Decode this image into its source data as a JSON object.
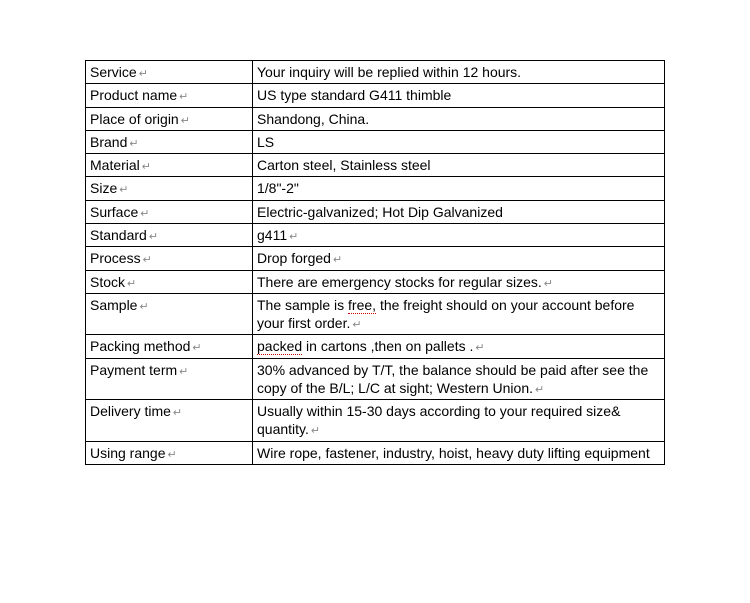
{
  "table": {
    "rows": [
      {
        "label": "Service",
        "labelMark": true,
        "value": "Your inquiry will be replied within 12 hours.",
        "valueMark": false,
        "valueParts": null
      },
      {
        "label": "Product name",
        "labelMark": true,
        "value": "US type standard G411 thimble",
        "valueMark": false,
        "valueParts": null
      },
      {
        "label": "Place of origin",
        "labelMark": true,
        "value": "Shandong, China.",
        "valueMark": false,
        "valueParts": null
      },
      {
        "label": "Brand",
        "labelMark": true,
        "value": "LS",
        "valueMark": false,
        "valueParts": null
      },
      {
        "label": "Material",
        "labelMark": true,
        "value": "Carton steel, Stainless steel",
        "valueMark": false,
        "valueParts": null
      },
      {
        "label": "Size",
        "labelMark": true,
        "value": "1/8\"-2\"",
        "valueMark": false,
        "valueParts": null
      },
      {
        "label": "Surface",
        "labelMark": true,
        "value": "Electric-galvanized; Hot Dip Galvanized",
        "valueMark": false,
        "valueParts": null
      },
      {
        "label": "Standard",
        "labelMark": true,
        "value": "g411",
        "valueMark": true,
        "valueParts": null
      },
      {
        "label": "Process",
        "labelMark": true,
        "value": "Drop forged",
        "valueMark": true,
        "valueParts": null
      },
      {
        "label": "Stock",
        "labelMark": true,
        "value": "There are emergency stocks for regular sizes.",
        "valueMark": true,
        "valueParts": null
      },
      {
        "label": "Sample",
        "labelMark": true,
        "value": null,
        "valueMark": true,
        "valueParts": [
          {
            "text": "The sample is ",
            "underline": false
          },
          {
            "text": "free,",
            "underline": true
          },
          {
            "text": " the freight should on your account before your first order.",
            "underline": false
          }
        ]
      },
      {
        "label": "Packing method",
        "labelMark": true,
        "value": null,
        "valueMark": true,
        "valueParts": [
          {
            "text": "packed",
            "underline": true
          },
          {
            "text": " in cartons ,then on pallets .",
            "underline": false
          }
        ]
      },
      {
        "label": "Payment term",
        "labelMark": true,
        "value": "30% advanced by T/T, the balance should be paid after see the copy of the B/L; L/C at sight; Western Union.",
        "valueMark": true,
        "valueParts": null
      },
      {
        "label": "Delivery time",
        "labelMark": true,
        "value": "Usually within 15-30 days according to your required size& quantity.",
        "valueMark": true,
        "valueParts": null
      },
      {
        "label": "Using range",
        "labelMark": true,
        "value": "Wire rope, fastener, industry, hoist, heavy duty lifting equipment",
        "valueMark": false,
        "valueParts": null
      }
    ]
  },
  "styling": {
    "border_color": "#000000",
    "text_color": "#000000",
    "background_color": "#ffffff",
    "font_size": 14,
    "col1_width": 158,
    "return_mark_color": "#888888",
    "underline_color": "#cc0000"
  }
}
